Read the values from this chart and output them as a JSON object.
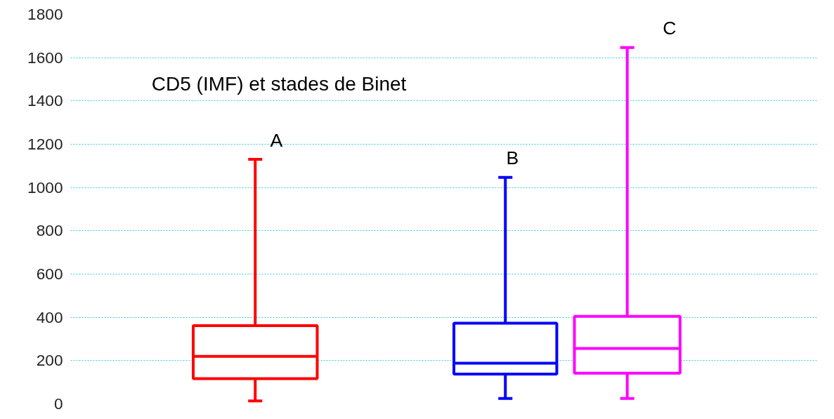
{
  "chart_data": {
    "type": "box",
    "title": "CD5 (IMF) et stades de Binet",
    "categories": [
      "A",
      "B",
      "C"
    ],
    "series": [
      {
        "color": "#ff0000",
        "boxes": [
          {
            "low": 14,
            "q1": 117,
            "median": 220,
            "q3": 362,
            "high": 1130
          },
          null,
          null
        ]
      },
      {
        "color": "#0000ff",
        "boxes": [
          null,
          {
            "low": 25,
            "q1": 138,
            "median": 188,
            "q3": 373,
            "high": 1047
          },
          null
        ]
      },
      {
        "color": "#ff00ff",
        "boxes": [
          null,
          null,
          {
            "low": 25,
            "q1": 142,
            "median": 256,
            "q3": 405,
            "high": 1647
          }
        ]
      }
    ],
    "ylim": [
      0,
      1800
    ],
    "yticks": [
      0,
      200,
      400,
      600,
      800,
      1000,
      1200,
      1400,
      1600,
      1800
    ],
    "grid": "y",
    "tick_labels": "y"
  }
}
